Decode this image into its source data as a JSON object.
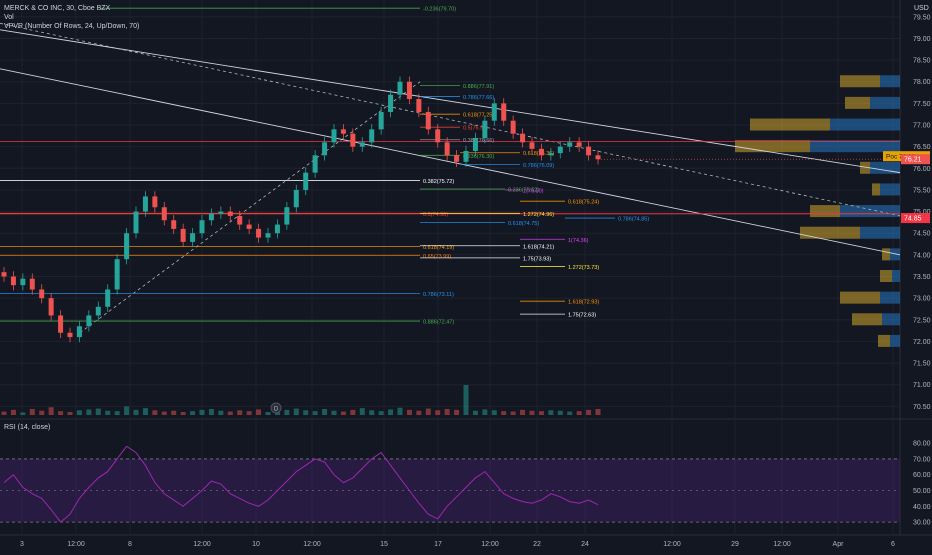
{
  "header": {
    "symbol_line": "MERCK & CO INC, 30, Cboe BZX",
    "vol_label": "Vol",
    "vpvr_label": "VPVR (Number Of Rows, 24, Up/Down, 70)",
    "rsi_label": "RSI (14, close)",
    "currency": "USD"
  },
  "colors": {
    "background": "#131722",
    "grid": "#1e222d",
    "up": "#26a69a",
    "down": "#ef5350",
    "rsi_line": "#9c27b0",
    "rsi_band": "#3a1f5b",
    "vpvr_up": "#2679c2",
    "vpvr_down": "#d4a72c",
    "price_label": "#ef5350",
    "poc_label": "#e6a200"
  },
  "price_axis": {
    "ticks": [
      "79.50",
      "79.00",
      "78.50",
      "78.00",
      "77.50",
      "77.00",
      "76.50",
      "76.00",
      "75.50",
      "75.00",
      "74.50",
      "74.00",
      "73.50",
      "73.00",
      "72.50",
      "72.00",
      "71.50",
      "71.00",
      "70.50"
    ],
    "current_price": "76.21",
    "poc_label": "Poc",
    "poc_price": "76.28",
    "level_label": "74.85"
  },
  "rsi_axis": {
    "ticks": [
      "80.00",
      "70.00",
      "60.00",
      "50.00",
      "40.00",
      "30.00"
    ]
  },
  "time_axis": {
    "ticks": [
      "3",
      "12:00",
      "8",
      "12:00",
      "10",
      "12:00",
      "15",
      "17",
      "12:00",
      "22",
      "24",
      "12:00",
      "29",
      "12:00",
      "Apr",
      "6"
    ]
  },
  "marker": "D",
  "chart_data": [
    {
      "type": "line",
      "title": "MERCK & CO INC, 30, Cboe BZX",
      "ylim": [
        70.3,
        79.75
      ],
      "fib_levels": [
        {
          "label": "-0.236(79.70)",
          "price": 79.7,
          "color": "#4caf50"
        },
        {
          "label": "0.886(77.91)",
          "price": 77.91,
          "color": "#4caf50"
        },
        {
          "label": "0.786(77.66)",
          "price": 77.66,
          "color": "#2196f3"
        },
        {
          "label": "0.618(77.25)",
          "price": 77.25,
          "color": "#ff9800"
        },
        {
          "label": "0.5(76.95)",
          "price": 76.95,
          "color": "#f44336"
        },
        {
          "label": "0.382(76.66)",
          "price": 76.66,
          "color": "#9e9e9e"
        },
        {
          "label": "0.236(76.30)",
          "price": 76.3,
          "color": "#4caf50"
        },
        {
          "label": "0.618(76.36)",
          "price": 76.36,
          "color": "#ff9800"
        },
        {
          "label": "0.786(76.09)",
          "price": 76.09,
          "color": "#2196f3"
        },
        {
          "label": "0.382(75.72)",
          "price": 75.72,
          "color": "#ffffff"
        },
        {
          "label": "0.236(75.52)",
          "price": 75.52,
          "color": "#4caf50"
        },
        {
          "label": "1(75.50)",
          "price": 75.5,
          "color": "#e040fb"
        },
        {
          "label": "0.618(75.24)",
          "price": 75.24,
          "color": "#ff9800"
        },
        {
          "label": "0.5(74.96)",
          "price": 74.96,
          "color": "#f44336"
        },
        {
          "label": "1.272(74.96)",
          "price": 74.96,
          "color": "#ffeb3b"
        },
        {
          "label": "0.786(74.85)",
          "price": 74.85,
          "color": "#2196f3"
        },
        {
          "label": "0.618(74.75)",
          "price": 74.75,
          "color": "#2196f3"
        },
        {
          "label": "1(74.36)",
          "price": 74.36,
          "color": "#e040fb"
        },
        {
          "label": "0.618(74.19)",
          "price": 74.19,
          "color": "#ff9800"
        },
        {
          "label": "1.618(74.21)",
          "price": 74.21,
          "color": "#ffffff"
        },
        {
          "label": "0.65(73.99)",
          "price": 73.99,
          "color": "#f57c00"
        },
        {
          "label": "1.75(73.93)",
          "price": 73.93,
          "color": "#ffffff"
        },
        {
          "label": "1.272(73.73)",
          "price": 73.73,
          "color": "#ffeb3b"
        },
        {
          "label": "0.786(73.11)",
          "price": 73.11,
          "color": "#2196f3"
        },
        {
          "label": "1.618(72.93)",
          "price": 72.93,
          "color": "#ff9800"
        },
        {
          "label": "1.75(72.63)",
          "price": 72.63,
          "color": "#ffffff"
        },
        {
          "label": "0.886(72.47)",
          "price": 72.47,
          "color": "#4caf50"
        }
      ],
      "price_series": [
        73.5,
        73.3,
        73.45,
        73.2,
        73.0,
        72.6,
        72.2,
        72.1,
        72.35,
        72.6,
        72.8,
        73.2,
        73.9,
        74.5,
        75.0,
        75.35,
        75.1,
        74.8,
        74.6,
        74.3,
        74.5,
        74.8,
        74.95,
        75.0,
        74.9,
        74.7,
        74.6,
        74.4,
        74.5,
        74.7,
        75.1,
        75.5,
        75.9,
        76.3,
        76.6,
        76.9,
        76.8,
        76.5,
        76.6,
        76.9,
        77.3,
        77.7,
        78.0,
        77.6,
        77.3,
        76.9,
        76.6,
        76.3,
        76.15,
        76.4,
        76.7,
        77.1,
        77.5,
        77.1,
        76.8,
        76.6,
        76.45,
        76.3,
        76.35,
        76.5,
        76.6,
        76.5,
        76.3,
        76.21
      ],
      "volume_series": [
        8,
        12,
        6,
        14,
        10,
        18,
        9,
        7,
        11,
        13,
        15,
        10,
        9,
        20,
        12,
        16,
        11,
        8,
        10,
        7,
        9,
        12,
        14,
        10,
        8,
        11,
        9,
        13,
        7,
        10,
        12,
        15,
        11,
        9,
        14,
        10,
        8,
        12,
        16,
        11,
        9,
        13,
        17,
        12,
        10,
        15,
        11,
        14,
        12,
        70,
        10,
        13,
        11,
        9,
        8,
        12,
        10,
        9,
        11,
        10,
        8,
        9,
        12,
        14
      ],
      "rsi_series": [
        55,
        60,
        52,
        48,
        45,
        38,
        30,
        35,
        45,
        52,
        58,
        62,
        70,
        78,
        74,
        66,
        55,
        48,
        44,
        40,
        45,
        50,
        56,
        54,
        48,
        45,
        42,
        40,
        44,
        50,
        56,
        62,
        66,
        70,
        68,
        60,
        55,
        58,
        64,
        70,
        74,
        66,
        58,
        50,
        42,
        35,
        32,
        40,
        46,
        52,
        58,
        62,
        55,
        48,
        45,
        43,
        42,
        44,
        48,
        46,
        43,
        42,
        44,
        41
      ],
      "vpvr": [
        {
          "price": 78.0,
          "up": 20,
          "down": 40
        },
        {
          "price": 77.5,
          "up": 30,
          "down": 25
        },
        {
          "price": 77.0,
          "up": 70,
          "down": 80
        },
        {
          "price": 76.5,
          "up": 90,
          "down": 75
        },
        {
          "price": 76.0,
          "up": 30,
          "down": 10
        },
        {
          "price": 75.5,
          "up": 20,
          "down": 8
        },
        {
          "price": 75.0,
          "up": 60,
          "down": 30
        },
        {
          "price": 74.5,
          "up": 40,
          "down": 60
        },
        {
          "price": 74.0,
          "up": 10,
          "down": 8
        },
        {
          "price": 73.5,
          "up": 8,
          "down": 12
        },
        {
          "price": 73.0,
          "up": 20,
          "down": 40
        },
        {
          "price": 72.5,
          "up": 18,
          "down": 30
        },
        {
          "price": 72.0,
          "up": 10,
          "down": 12
        }
      ]
    }
  ]
}
